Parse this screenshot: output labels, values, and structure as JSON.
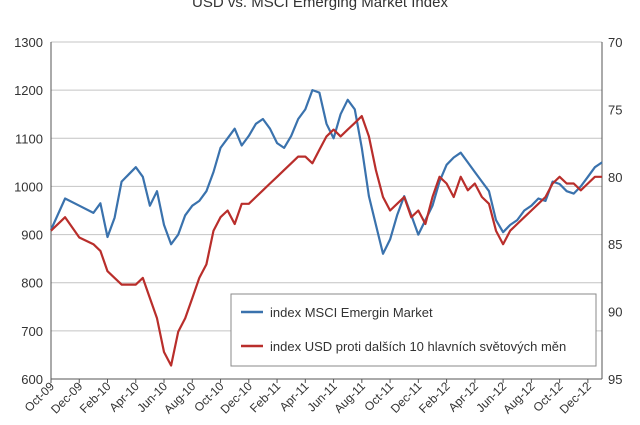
{
  "colors": {
    "background": "#ffffff",
    "grid": "#c4c4c4",
    "axis": "#555555",
    "text": "#333333",
    "msci": "#3a72ad",
    "usd": "#b92e2b"
  },
  "chart_data": {
    "type": "line",
    "title": "USD vs. MSCI Emerging Market Index",
    "xlabel": "",
    "ylabel": "",
    "x_tick_labels": [
      "Oct-09",
      "Dec-09",
      "Feb-10",
      "Apr-10",
      "Jun-10",
      "Aug-10",
      "Oct-10",
      "Dec-10",
      "Feb-11",
      "Apr-11",
      "Jun-11",
      "Aug-11",
      "Oct-11",
      "Dec-11",
      "Feb-12",
      "Apr-12",
      "Jun-12",
      "Aug-12",
      "Oct-12",
      "Dec-12"
    ],
    "y_left": {
      "min": 600,
      "max": 1300,
      "ticks": [
        "600",
        "700",
        "800",
        "900",
        "1000",
        "1100",
        "1200",
        "1300"
      ]
    },
    "y_right": {
      "min": 70,
      "max": 95,
      "inverted": true,
      "ticks": [
        "70",
        "75",
        "80",
        "85",
        "90",
        "95"
      ]
    },
    "grid": "horizontal",
    "legend_position": "bottom-right",
    "series": [
      {
        "name": "index MSCI Emergin Market",
        "axis": "left",
        "color": "#3a72ad",
        "points": [
          [
            "Oct-09",
            910
          ],
          [
            "Nov-09",
            975
          ],
          [
            "Dec-09",
            960
          ],
          [
            "Jan-10",
            945
          ],
          [
            "Jan-10",
            965
          ],
          [
            "Feb-10",
            895
          ],
          [
            "Feb-10",
            935
          ],
          [
            "Mar-10",
            1010
          ],
          [
            "Apr-10",
            1040
          ],
          [
            "Apr-10",
            1020
          ],
          [
            "May-10",
            960
          ],
          [
            "May-10",
            990
          ],
          [
            "Jun-10",
            920
          ],
          [
            "Jun-10",
            880
          ],
          [
            "Jul-10",
            900
          ],
          [
            "Jul-10",
            940
          ],
          [
            "Aug-10",
            960
          ],
          [
            "Aug-10",
            970
          ],
          [
            "Sep-10",
            990
          ],
          [
            "Sep-10",
            1030
          ],
          [
            "Oct-10",
            1080
          ],
          [
            "Oct-10",
            1100
          ],
          [
            "Nov-10",
            1120
          ],
          [
            "Nov-10",
            1085
          ],
          [
            "Dec-10",
            1105
          ],
          [
            "Dec-10",
            1130
          ],
          [
            "Jan-11",
            1140
          ],
          [
            "Jan-11",
            1120
          ],
          [
            "Feb-11",
            1090
          ],
          [
            "Feb-11",
            1080
          ],
          [
            "Mar-11",
            1105
          ],
          [
            "Mar-11",
            1140
          ],
          [
            "Apr-11",
            1160
          ],
          [
            "Apr-11",
            1200
          ],
          [
            "May-11",
            1195
          ],
          [
            "May-11",
            1130
          ],
          [
            "Jun-11",
            1100
          ],
          [
            "Jun-11",
            1150
          ],
          [
            "Jul-11",
            1180
          ],
          [
            "Jul-11",
            1160
          ],
          [
            "Aug-11",
            1080
          ],
          [
            "Aug-11",
            980
          ],
          [
            "Sep-11",
            920
          ],
          [
            "Sep-11",
            860
          ],
          [
            "Oct-11",
            890
          ],
          [
            "Oct-11",
            940
          ],
          [
            "Nov-11",
            980
          ],
          [
            "Nov-11",
            940
          ],
          [
            "Dec-11",
            900
          ],
          [
            "Dec-11",
            930
          ],
          [
            "Jan-12",
            960
          ],
          [
            "Jan-12",
            1010
          ],
          [
            "Feb-12",
            1045
          ],
          [
            "Feb-12",
            1060
          ],
          [
            "Mar-12",
            1070
          ],
          [
            "Mar-12",
            1050
          ],
          [
            "Apr-12",
            1030
          ],
          [
            "Apr-12",
            1010
          ],
          [
            "May-12",
            990
          ],
          [
            "May-12",
            930
          ],
          [
            "Jun-12",
            905
          ],
          [
            "Jun-12",
            920
          ],
          [
            "Jul-12",
            930
          ],
          [
            "Jul-12",
            950
          ],
          [
            "Aug-12",
            960
          ],
          [
            "Aug-12",
            975
          ],
          [
            "Sep-12",
            970
          ],
          [
            "Sep-12",
            1010
          ],
          [
            "Oct-12",
            1005
          ],
          [
            "Oct-12",
            990
          ],
          [
            "Nov-12",
            985
          ],
          [
            "Nov-12",
            1000
          ],
          [
            "Dec-12",
            1020
          ],
          [
            "Dec-12",
            1040
          ],
          [
            "Jan-13",
            1050
          ]
        ]
      },
      {
        "name": "index USD proti dalších 10 hlavních světových měn",
        "axis": "right",
        "color": "#b92e2b",
        "points": [
          [
            "Oct-09",
            84.0
          ],
          [
            "Nov-09",
            83.0
          ],
          [
            "Dec-09",
            84.5
          ],
          [
            "Jan-10",
            85.0
          ],
          [
            "Jan-10",
            85.5
          ],
          [
            "Feb-10",
            87.0
          ],
          [
            "Feb-10",
            87.5
          ],
          [
            "Mar-10",
            88.0
          ],
          [
            "Apr-10",
            88.0
          ],
          [
            "Apr-10",
            87.5
          ],
          [
            "May-10",
            89.0
          ],
          [
            "May-10",
            90.5
          ],
          [
            "Jun-10",
            93.0
          ],
          [
            "Jun-10",
            94.0
          ],
          [
            "Jul-10",
            91.5
          ],
          [
            "Jul-10",
            90.5
          ],
          [
            "Aug-10",
            89.0
          ],
          [
            "Aug-10",
            87.5
          ],
          [
            "Sep-10",
            86.5
          ],
          [
            "Sep-10",
            84.0
          ],
          [
            "Oct-10",
            83.0
          ],
          [
            "Oct-10",
            82.5
          ],
          [
            "Nov-10",
            83.5
          ],
          [
            "Nov-10",
            82.0
          ],
          [
            "Dec-10",
            82.0
          ],
          [
            "Dec-10",
            81.5
          ],
          [
            "Jan-11",
            81.0
          ],
          [
            "Jan-11",
            80.5
          ],
          [
            "Feb-11",
            80.0
          ],
          [
            "Feb-11",
            79.5
          ],
          [
            "Mar-11",
            79.0
          ],
          [
            "Mar-11",
            78.5
          ],
          [
            "Apr-11",
            78.5
          ],
          [
            "Apr-11",
            79.0
          ],
          [
            "May-11",
            78.0
          ],
          [
            "May-11",
            77.0
          ],
          [
            "Jun-11",
            76.5
          ],
          [
            "Jun-11",
            77.0
          ],
          [
            "Jul-11",
            76.5
          ],
          [
            "Jul-11",
            76.0
          ],
          [
            "Aug-11",
            75.5
          ],
          [
            "Aug-11",
            77.0
          ],
          [
            "Sep-11",
            79.5
          ],
          [
            "Sep-11",
            81.5
          ],
          [
            "Oct-11",
            82.5
          ],
          [
            "Oct-11",
            82.0
          ],
          [
            "Nov-11",
            81.5
          ],
          [
            "Nov-11",
            83.0
          ],
          [
            "Dec-11",
            82.5
          ],
          [
            "Dec-11",
            83.5
          ],
          [
            "Jan-12",
            81.5
          ],
          [
            "Jan-12",
            80.0
          ],
          [
            "Feb-12",
            80.5
          ],
          [
            "Feb-12",
            81.5
          ],
          [
            "Mar-12",
            80.0
          ],
          [
            "Mar-12",
            81.0
          ],
          [
            "Apr-12",
            80.5
          ],
          [
            "Apr-12",
            81.5
          ],
          [
            "May-12",
            82.0
          ],
          [
            "May-12",
            84.0
          ],
          [
            "Jun-12",
            85.0
          ],
          [
            "Jun-12",
            84.0
          ],
          [
            "Jul-12",
            83.5
          ],
          [
            "Jul-12",
            83.0
          ],
          [
            "Aug-12",
            82.5
          ],
          [
            "Aug-12",
            82.0
          ],
          [
            "Sep-12",
            81.5
          ],
          [
            "Sep-12",
            80.5
          ],
          [
            "Oct-12",
            80.0
          ],
          [
            "Oct-12",
            80.5
          ],
          [
            "Nov-12",
            80.5
          ],
          [
            "Nov-12",
            81.0
          ],
          [
            "Dec-12",
            80.5
          ],
          [
            "Dec-12",
            80.0
          ],
          [
            "Jan-13",
            80.0
          ]
        ]
      }
    ]
  }
}
